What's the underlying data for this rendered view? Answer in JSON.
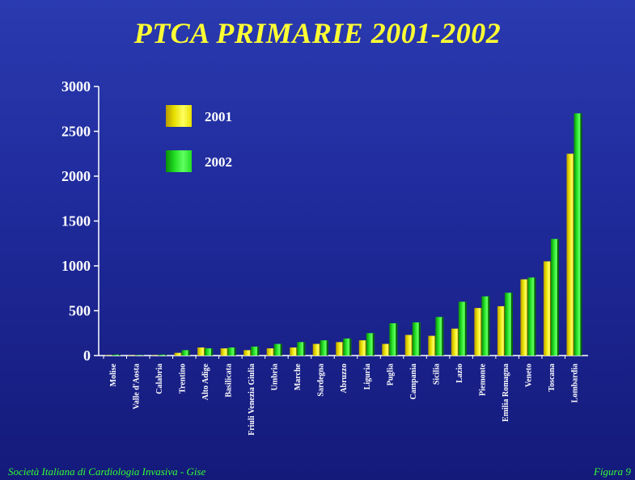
{
  "colors": {
    "series_2001": "#e8e000",
    "series_2002": "#22dd22",
    "axis": "#ffffff",
    "title": "#ffff33",
    "footer": "#33ff33"
  },
  "footer": {
    "left": "Società Italiana di Cardiologia Invasiva - Gise",
    "right": "Figura 9"
  },
  "chart_data": {
    "type": "bar",
    "title": "PTCA PRIMARIE  2001-2002",
    "xlabel": "",
    "ylabel": "",
    "ylim": [
      0,
      3000
    ],
    "yticks": [
      0,
      500,
      1000,
      1500,
      2000,
      2500,
      3000
    ],
    "legend_placement": "top-left",
    "grid": false,
    "categories": [
      "Molise",
      "Valle d'Aosta",
      "Calabria",
      "Trentino",
      "Alto Adige",
      "Basilicata",
      "Friuli Venezia Giulia",
      "Umbria",
      "Marche",
      "Sardegna",
      "Abruzzo",
      "Liguria",
      "Puglia",
      "Campania",
      "Sicilia",
      "Lazio",
      "Piemonte",
      "Emilia Romagna",
      "Veneto",
      "Toscana",
      "Lombardia"
    ],
    "series": [
      {
        "name": "2001",
        "values": [
          5,
          3,
          5,
          30,
          90,
          80,
          60,
          80,
          90,
          130,
          150,
          170,
          130,
          230,
          220,
          300,
          530,
          550,
          850,
          1050,
          2250
        ]
      },
      {
        "name": "2002",
        "values": [
          10,
          5,
          10,
          60,
          80,
          90,
          100,
          130,
          150,
          170,
          190,
          250,
          360,
          370,
          430,
          600,
          660,
          700,
          870,
          1300,
          2700
        ]
      }
    ]
  }
}
